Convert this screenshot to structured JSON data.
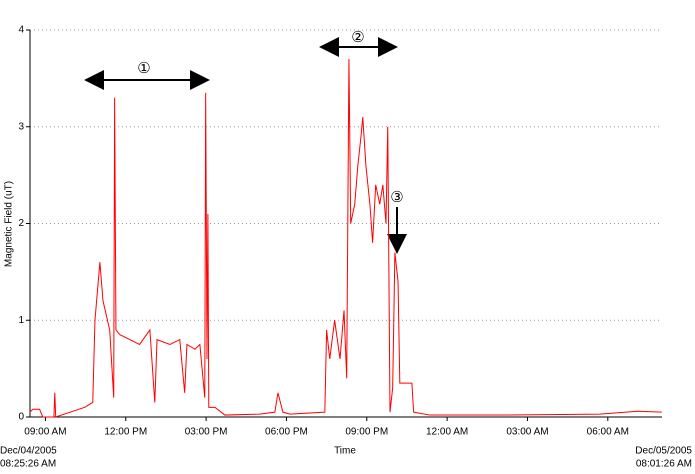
{
  "chart_data": {
    "type": "line",
    "y_label": "Magnetic Field (uT)",
    "x_label": "Time",
    "xlim": [
      "2005-12-04T08:25:26",
      "2005-12-05T08:01:26"
    ],
    "x_end_labels": [
      [
        "Dec/04/2005",
        "08:25:26 AM"
      ],
      [
        "Dec/05/2005",
        "08:01:26 AM"
      ]
    ],
    "xticks": [
      {
        "value": "2005-12-04T09:00",
        "label": "09:00 AM"
      },
      {
        "value": "2005-12-04T12:00",
        "label": "12:00 PM"
      },
      {
        "value": "2005-12-04T15:00",
        "label": "03:00 PM"
      },
      {
        "value": "2005-12-04T18:00",
        "label": "06:00 PM"
      },
      {
        "value": "2005-12-04T21:00",
        "label": "09:00 PM"
      },
      {
        "value": "2005-12-05T00:00",
        "label": "12:00 AM"
      },
      {
        "value": "2005-12-05T03:00",
        "label": "03:00 AM"
      },
      {
        "value": "2005-12-05T06:00",
        "label": "06:00 AM"
      }
    ],
    "ylim": [
      0,
      4
    ],
    "yticks": [
      0,
      1,
      2,
      3,
      4
    ],
    "grid": true,
    "annotations": [
      "①",
      "②",
      "③"
    ],
    "series": [
      {
        "color": "#ff0000",
        "x": [
          "2005-12-04T08:25",
          "2005-12-04T08:32",
          "2005-12-04T08:47",
          "2005-12-04T08:54",
          "2005-12-04T09:19",
          "2005-12-04T09:21",
          "2005-12-04T09:23",
          "2005-12-04T10:28",
          "2005-12-04T10:46",
          "2005-12-04T10:51",
          "2005-12-04T11:02",
          "2005-12-04T11:09",
          "2005-12-04T11:24",
          "2005-12-04T11:33",
          "2005-12-04T11:35",
          "2005-12-04T11:38",
          "2005-12-04T11:47",
          "2005-12-04T12:09",
          "2005-12-04T12:31",
          "2005-12-04T12:54",
          "2005-12-04T13:05",
          "2005-12-04T13:10",
          "2005-12-04T13:39",
          "2005-12-04T14:01",
          "2005-12-04T14:12",
          "2005-12-04T14:17",
          "2005-12-04T14:35",
          "2005-12-04T14:46",
          "2005-12-04T14:57",
          "2005-12-04T14:59",
          "2005-12-04T15:02",
          "2005-12-04T15:04",
          "2005-12-04T15:06",
          "2005-12-04T15:20",
          "2005-12-04T15:42",
          "2005-12-04T17:00",
          "2005-12-04T17:34",
          "2005-12-04T17:41",
          "2005-12-04T17:52",
          "2005-12-04T18:08",
          "2005-12-04T19:26",
          "2005-12-04T19:30",
          "2005-12-04T19:37",
          "2005-12-04T19:48",
          "2005-12-04T20:00",
          "2005-12-04T20:09",
          "2005-12-04T20:15",
          "2005-12-04T20:20",
          "2005-12-04T20:24",
          "2005-12-04T20:33",
          "2005-12-04T20:40",
          "2005-12-04T20:47",
          "2005-12-04T20:51",
          "2005-12-04T20:58",
          "2005-12-04T21:07",
          "2005-12-04T21:13",
          "2005-12-04T21:20",
          "2005-12-04T21:29",
          "2005-12-04T21:36",
          "2005-12-04T21:43",
          "2005-12-04T21:47",
          "2005-12-04T21:52",
          "2005-12-04T21:58",
          "2005-12-04T22:03",
          "2005-12-04T22:10",
          "2005-12-04T22:14",
          "2005-12-04T22:41",
          "2005-12-04T22:45",
          "2005-12-04T23:21",
          "2005-12-05T01:58",
          "2005-12-05T05:42",
          "2005-12-05T07:07",
          "2005-12-05T08:01"
        ],
        "values": [
          0.05,
          0.08,
          0.08,
          0.0,
          0.0,
          0.25,
          0.0,
          0.1,
          0.15,
          1.0,
          1.6,
          1.2,
          0.9,
          0.2,
          3.3,
          0.9,
          0.85,
          0.8,
          0.75,
          0.9,
          0.15,
          0.8,
          0.75,
          0.8,
          0.25,
          0.75,
          0.7,
          0.75,
          0.2,
          3.35,
          0.6,
          2.1,
          0.1,
          0.1,
          0.02,
          0.03,
          0.05,
          0.25,
          0.05,
          0.03,
          0.05,
          0.9,
          0.6,
          1.0,
          0.6,
          1.1,
          0.4,
          3.7,
          2.0,
          2.2,
          2.6,
          2.9,
          3.1,
          2.6,
          2.2,
          1.8,
          2.4,
          2.2,
          2.4,
          2.0,
          3.0,
          0.05,
          0.3,
          1.7,
          1.4,
          0.35,
          0.35,
          0.05,
          0.02,
          0.02,
          0.03,
          0.06,
          0.05
        ]
      }
    ]
  }
}
